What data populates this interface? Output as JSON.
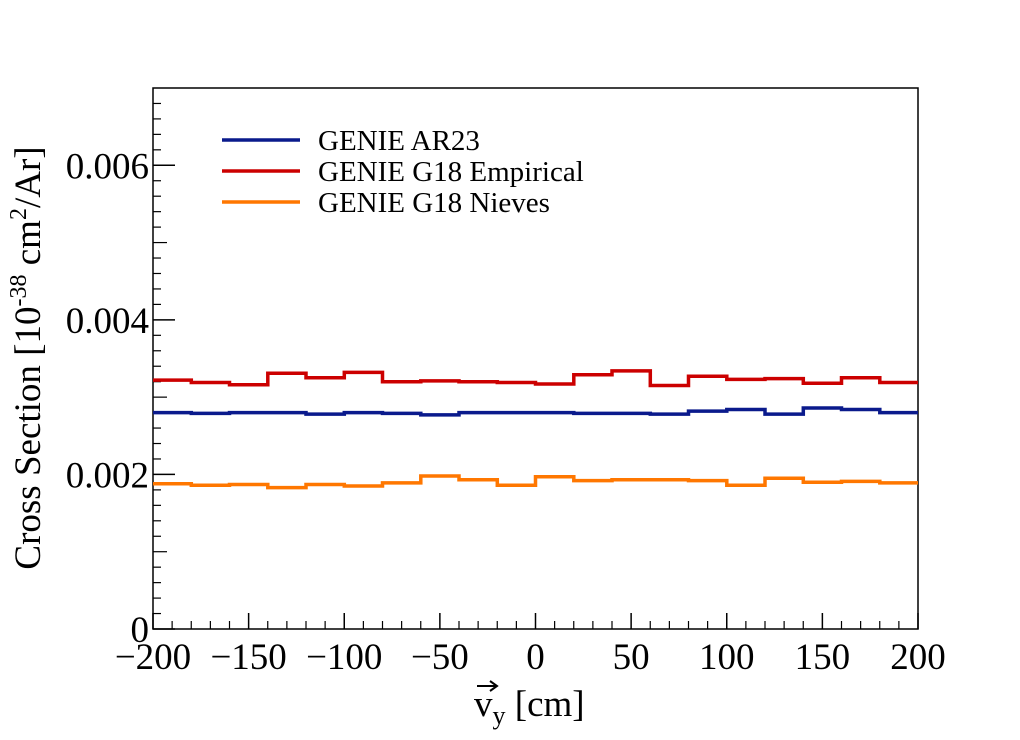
{
  "chart_data": {
    "type": "line",
    "title": "",
    "xlabel": "v_y [cm]",
    "xlabel_main": "v",
    "xlabel_sub": "y",
    "xlabel_unit": " [cm]",
    "ylabel": "Cross Section [10^-38 cm^2/Ar]",
    "ylabel_prefix": "Cross Section [10",
    "ylabel_exp": "-38",
    "ylabel_mid": " cm",
    "ylabel_exp2": "2",
    "ylabel_suffix": "/Ar]",
    "xlim": [
      -200,
      200
    ],
    "ylim": [
      0,
      0.007
    ],
    "xticks": [
      -200,
      -150,
      -100,
      -50,
      0,
      50,
      100,
      150,
      200
    ],
    "xtick_labels": [
      "−200",
      "−150",
      "−100",
      "−50",
      "0",
      "50",
      "100",
      "150",
      "200"
    ],
    "yticks": [
      0,
      0.002,
      0.004,
      0.006
    ],
    "ytick_labels": [
      "0",
      "0.002",
      "0.004",
      "0.006"
    ],
    "grid": false,
    "legend_position": "top-left",
    "bin_edges": [
      -200,
      -180,
      -160,
      -140,
      -120,
      -100,
      -80,
      -60,
      -40,
      -20,
      0,
      20,
      40,
      60,
      80,
      100,
      120,
      140,
      160,
      180,
      200
    ],
    "series": [
      {
        "name": "GENIE AR23",
        "color": "#0a1a8c",
        "values": [
          0.0028,
          0.00279,
          0.0028,
          0.0028,
          0.00278,
          0.0028,
          0.00279,
          0.00277,
          0.0028,
          0.0028,
          0.0028,
          0.00279,
          0.00279,
          0.00278,
          0.00282,
          0.00284,
          0.00278,
          0.00286,
          0.00284,
          0.0028
        ]
      },
      {
        "name": "GENIE G18 Empirical",
        "color": "#cc0000",
        "values": [
          0.00322,
          0.00319,
          0.00316,
          0.00331,
          0.00325,
          0.00332,
          0.0032,
          0.00321,
          0.0032,
          0.00319,
          0.00317,
          0.00329,
          0.00334,
          0.00315,
          0.00327,
          0.00323,
          0.00324,
          0.00318,
          0.00325,
          0.00319
        ]
      },
      {
        "name": "GENIE G18 Nieves",
        "color": "#ff7700",
        "values": [
          0.00188,
          0.00186,
          0.00187,
          0.00183,
          0.00187,
          0.00185,
          0.00189,
          0.00198,
          0.00193,
          0.00186,
          0.00197,
          0.00192,
          0.00193,
          0.00193,
          0.00192,
          0.00186,
          0.00195,
          0.0019,
          0.00191,
          0.00189
        ]
      }
    ]
  }
}
